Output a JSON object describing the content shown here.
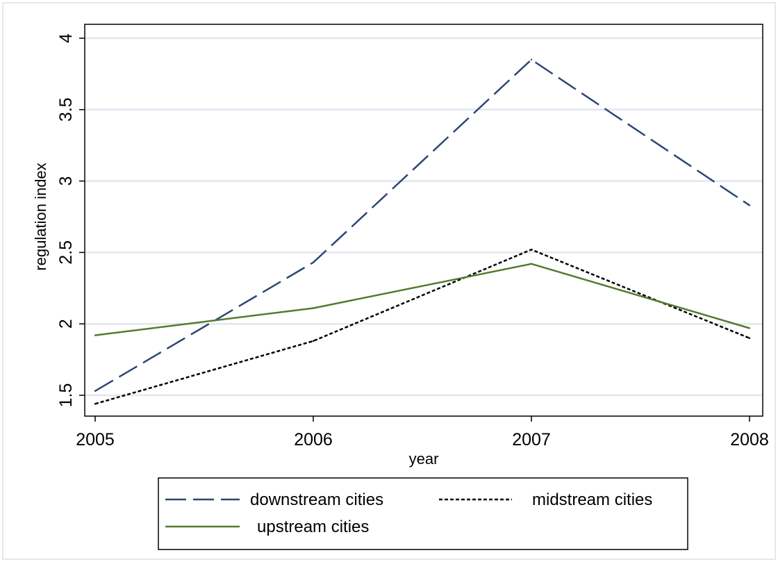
{
  "chart_data": {
    "type": "line",
    "title": "",
    "xlabel": "year",
    "ylabel": "regulation index",
    "x": [
      2005,
      2006,
      2007,
      2008
    ],
    "xlim": [
      2005,
      2008
    ],
    "ylim": [
      1.5,
      4
    ],
    "xticks": [
      "2005",
      "2006",
      "2007",
      "2008"
    ],
    "yticks": [
      "1.5",
      "2",
      "2.5",
      "3",
      "3.5",
      "4"
    ],
    "grid": "horizontal",
    "legend_position": "bottom",
    "series": [
      {
        "name": "downstream cities",
        "values": [
          1.53,
          2.43,
          3.85,
          2.83
        ],
        "color": "#2e4575",
        "dash": "dashed"
      },
      {
        "name": "midstream cities",
        "values": [
          1.44,
          1.88,
          2.52,
          1.9
        ],
        "color": "#000000",
        "dash": "dotted"
      },
      {
        "name": "upstream cities",
        "values": [
          1.92,
          2.11,
          2.42,
          1.97
        ],
        "color": "#557a2e",
        "dash": "solid"
      }
    ]
  }
}
